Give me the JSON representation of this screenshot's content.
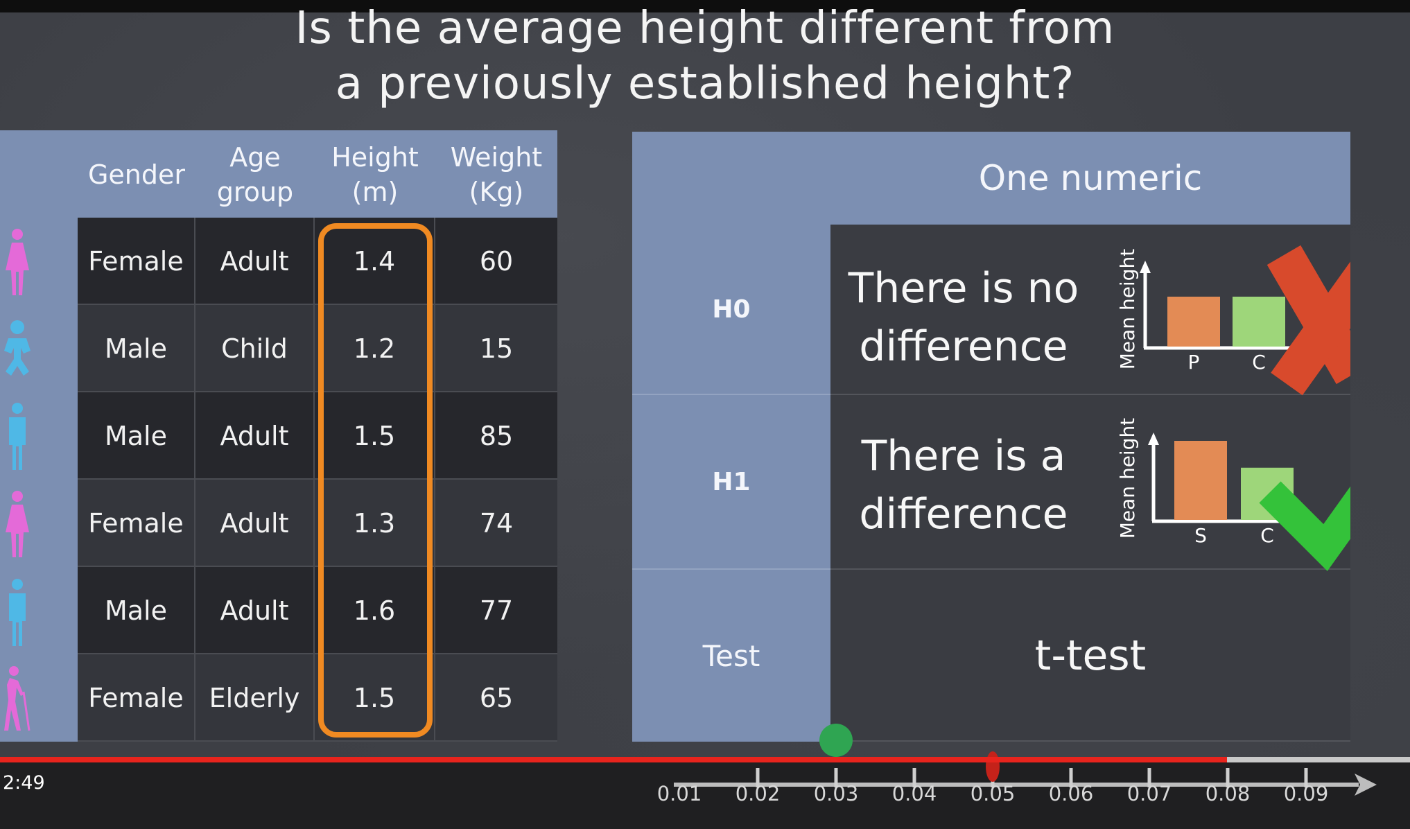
{
  "title": {
    "line1": "Is the average height different from",
    "line2": "a previously established height?"
  },
  "data_table": {
    "headers": [
      "Gender",
      "Age\ngroup",
      "Height\n(m)",
      "Weight\n(Kg)"
    ],
    "rows": [
      {
        "icon": "female-adult-icon",
        "gender": "Female",
        "age": "Adult",
        "height": "1.4",
        "weight": "60"
      },
      {
        "icon": "baby-icon",
        "gender": "Male",
        "age": "Child",
        "height": "1.2",
        "weight": "15"
      },
      {
        "icon": "male-adult-icon",
        "gender": "Male",
        "age": "Adult",
        "height": "1.5",
        "weight": "85"
      },
      {
        "icon": "female-adult-icon",
        "gender": "Female",
        "age": "Adult",
        "height": "1.3",
        "weight": "74"
      },
      {
        "icon": "male-adult-icon",
        "gender": "Male",
        "age": "Adult",
        "height": "1.6",
        "weight": "77"
      },
      {
        "icon": "elderly-person-icon",
        "gender": "Female",
        "age": "Elderly",
        "height": "1.5",
        "weight": "65"
      }
    ],
    "highlight_color": "#f08a22"
  },
  "hypothesis_table": {
    "header": "One numeric",
    "h0": {
      "label": "H0",
      "text": "There is no difference",
      "chart_ylabel": "Mean height",
      "bars": [
        {
          "label": "P",
          "value": 1.0,
          "color": "#e38b55"
        },
        {
          "label": "C",
          "value": 1.0,
          "color": "#9ed67a"
        }
      ],
      "mark": "cross-icon"
    },
    "h1": {
      "label": "H1",
      "text": "There is a difference",
      "chart_ylabel": "Mean height",
      "bars": [
        {
          "label": "S",
          "value": 1.0,
          "color": "#e38b55"
        },
        {
          "label": "C",
          "value": 0.66,
          "color": "#9ed67a"
        }
      ],
      "mark": "check-icon"
    },
    "test": {
      "label": "Test",
      "value": "t-test"
    }
  },
  "video": {
    "timestamp": "2:49",
    "progress": 0.87,
    "progress_color": "#e8241d"
  },
  "axis": {
    "ticks": [
      "0.01",
      "0.02",
      "0.03",
      "0.04",
      "0.05",
      "0.06",
      "0.07",
      "0.08",
      "0.09"
    ],
    "green_marker_value": 0.03,
    "red_marker_value": 0.05
  }
}
